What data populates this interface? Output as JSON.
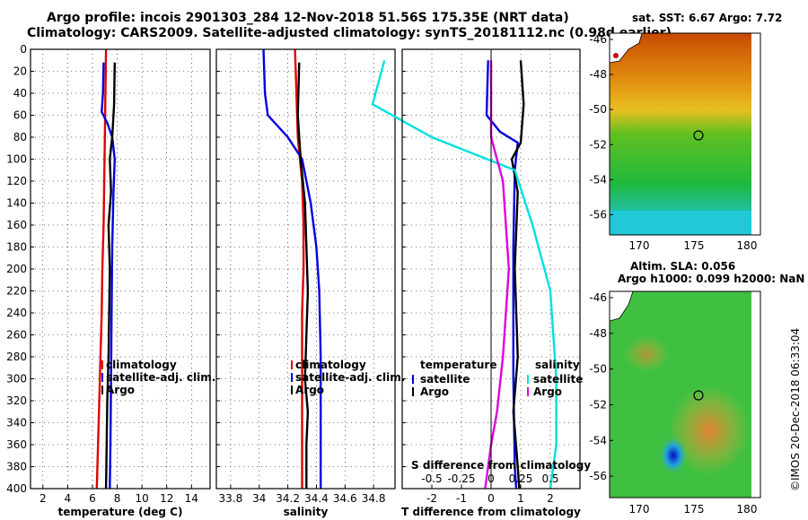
{
  "title_line1": "Argo profile: incois 2901303_284 12-Nov-2018 51.56S 175.35E (NRT data)",
  "title_line2": "Climatology: CARS2009. Satellite-adjusted climatology: synTS_20181112.nc (0.98d earlier)",
  "copyright": "©IMOS 20-Dec-2018 06:33:04",
  "colors": {
    "climatology": "#e00000",
    "satellite": "#0000e0",
    "argo": "#000000",
    "sat_sdiff": "#00e0e0",
    "magenta": "#e000e0"
  },
  "chart_data": [
    {
      "type": "line",
      "id": "temperature",
      "xlabel": "temperature (deg C)",
      "ylabel": "",
      "xlim": [
        1,
        15.5
      ],
      "ylim": [
        400,
        0
      ],
      "xticks": [
        2,
        4,
        6,
        8,
        10,
        12,
        14
      ],
      "yticks": [
        0,
        20,
        40,
        60,
        80,
        100,
        120,
        140,
        160,
        180,
        200,
        220,
        240,
        260,
        280,
        300,
        320,
        340,
        360,
        380,
        400
      ],
      "legend": [
        "climatology",
        "satellite-adj. clim.",
        "Argo"
      ],
      "series": [
        {
          "name": "climatology",
          "color": "#e00000",
          "points": [
            [
              7.1,
              0
            ],
            [
              7.05,
              40
            ],
            [
              7.0,
              80
            ],
            [
              6.95,
              120
            ],
            [
              6.9,
              160
            ],
            [
              6.8,
              200
            ],
            [
              6.75,
              240
            ],
            [
              6.65,
              280
            ],
            [
              6.55,
              320
            ],
            [
              6.45,
              360
            ],
            [
              6.35,
              400
            ]
          ]
        },
        {
          "name": "satellite-adj. clim.",
          "color": "#0000e0",
          "points": [
            [
              6.9,
              12
            ],
            [
              6.85,
              40
            ],
            [
              6.75,
              57
            ],
            [
              7.2,
              67
            ],
            [
              7.6,
              80
            ],
            [
              7.8,
              100
            ],
            [
              7.7,
              130
            ],
            [
              7.6,
              180
            ],
            [
              7.55,
              240
            ],
            [
              7.5,
              300
            ],
            [
              7.45,
              360
            ],
            [
              7.4,
              400
            ]
          ]
        },
        {
          "name": "Argo",
          "color": "#000000",
          "points": [
            [
              7.8,
              12
            ],
            [
              7.75,
              50
            ],
            [
              7.6,
              80
            ],
            [
              7.4,
              100
            ],
            [
              7.5,
              130
            ],
            [
              7.3,
              160
            ],
            [
              7.4,
              200
            ],
            [
              7.35,
              240
            ],
            [
              7.3,
              280
            ],
            [
              7.2,
              320
            ],
            [
              7.15,
              360
            ],
            [
              7.1,
              400
            ]
          ]
        }
      ]
    },
    {
      "type": "line",
      "id": "salinity",
      "xlabel": "salinity",
      "ylabel": "",
      "xlim": [
        33.7,
        34.95
      ],
      "ylim": [
        400,
        0
      ],
      "xticks": [
        33.8,
        34,
        34.2,
        34.4,
        34.6,
        34.8
      ],
      "legend": [
        "climatology",
        "satellite-adj. clim.",
        "Argo"
      ],
      "series": [
        {
          "name": "climatology",
          "color": "#e00000",
          "points": [
            [
              34.25,
              0
            ],
            [
              34.26,
              40
            ],
            [
              34.27,
              80
            ],
            [
              34.3,
              120
            ],
            [
              34.31,
              160
            ],
            [
              34.31,
              200
            ],
            [
              34.3,
              240
            ],
            [
              34.3,
              280
            ],
            [
              34.3,
              320
            ],
            [
              34.3,
              360
            ],
            [
              34.3,
              400
            ]
          ]
        },
        {
          "name": "satellite-adj. clim.",
          "color": "#0000e0",
          "points": [
            [
              34.03,
              0
            ],
            [
              34.04,
              40
            ],
            [
              34.06,
              60
            ],
            [
              34.2,
              80
            ],
            [
              34.3,
              100
            ],
            [
              34.36,
              140
            ],
            [
              34.4,
              180
            ],
            [
              34.42,
              220
            ],
            [
              34.43,
              280
            ],
            [
              34.43,
              340
            ],
            [
              34.43,
              400
            ]
          ]
        },
        {
          "name": "Argo",
          "color": "#000000",
          "points": [
            [
              34.28,
              12
            ],
            [
              34.27,
              60
            ],
            [
              34.29,
              100
            ],
            [
              34.32,
              140
            ],
            [
              34.33,
              180
            ],
            [
              34.34,
              220
            ],
            [
              34.33,
              260
            ],
            [
              34.32,
              300
            ],
            [
              34.34,
              330
            ],
            [
              34.33,
              360
            ],
            [
              34.33,
              400
            ]
          ]
        }
      ]
    },
    {
      "type": "line",
      "id": "difference",
      "xlabel": "T difference from climatology",
      "top_axis_label": "S difference from climatology",
      "xlim": [
        -3,
        3
      ],
      "ylim": [
        400,
        0
      ],
      "xticks": [
        -2,
        -1,
        0,
        1,
        2
      ],
      "top_ticks": [
        "-0.5",
        "-0.25",
        "0",
        "0.25",
        "0.5"
      ],
      "top_tick_values": [
        -0.5,
        -0.25,
        0,
        0.25,
        0.5
      ],
      "legend_title_left": "temperature",
      "legend_title_right": "salinity",
      "legend_left": [
        "satellite",
        "Argo"
      ],
      "legend_right": [
        "satellite",
        "Argo"
      ],
      "series": [
        {
          "name": "T satellite",
          "color": "#0000e0",
          "points": [
            [
              -0.1,
              10
            ],
            [
              -0.15,
              60
            ],
            [
              0.3,
              75
            ],
            [
              0.9,
              85
            ],
            [
              0.8,
              110
            ],
            [
              0.75,
              180
            ],
            [
              0.75,
              300
            ],
            [
              0.8,
              380
            ],
            [
              0.85,
              400
            ]
          ]
        },
        {
          "name": "T Argo",
          "color": "#000000",
          "points": [
            [
              1.0,
              10
            ],
            [
              1.1,
              50
            ],
            [
              1.0,
              85
            ],
            [
              0.7,
              100
            ],
            [
              0.9,
              130
            ],
            [
              0.8,
              200
            ],
            [
              0.9,
              280
            ],
            [
              0.75,
              330
            ],
            [
              0.9,
              380
            ],
            [
              0.95,
              400
            ]
          ]
        },
        {
          "name": "S satellite",
          "color": "#00e0e0",
          "points": [
            [
              -0.9,
              10
            ],
            [
              -1.0,
              50
            ],
            [
              -0.5,
              80
            ],
            [
              0.2,
              110
            ],
            [
              0.35,
              160
            ],
            [
              0.5,
              220
            ],
            [
              0.55,
              300
            ],
            [
              0.55,
              360
            ],
            [
              0.5,
              400
            ]
          ]
        },
        {
          "name": "S Argo",
          "color": "#e000e0",
          "points": [
            [
              0.0,
              10
            ],
            [
              0.0,
              80
            ],
            [
              0.1,
              120
            ],
            [
              0.15,
              200
            ],
            [
              0.1,
              280
            ],
            [
              0.05,
              330
            ],
            [
              0.0,
              360
            ],
            [
              -0.05,
              400
            ]
          ]
        }
      ]
    }
  ],
  "maps": {
    "sst": {
      "title": "sat. SST: 6.67 Argo: 7.72",
      "yticks": [
        "-46",
        "-48",
        "-50",
        "-52",
        "-54",
        "-56"
      ],
      "xticks": [
        "170",
        "175",
        "180"
      ]
    },
    "sla": {
      "title_line1": "Altim. SLA: 0.056",
      "title_line2": "Argo h1000: 0.099 h2000: NaN",
      "yticks": [
        "-46",
        "-48",
        "-50",
        "-52",
        "-54",
        "-56"
      ],
      "xticks": [
        "170",
        "175",
        "180"
      ]
    }
  }
}
